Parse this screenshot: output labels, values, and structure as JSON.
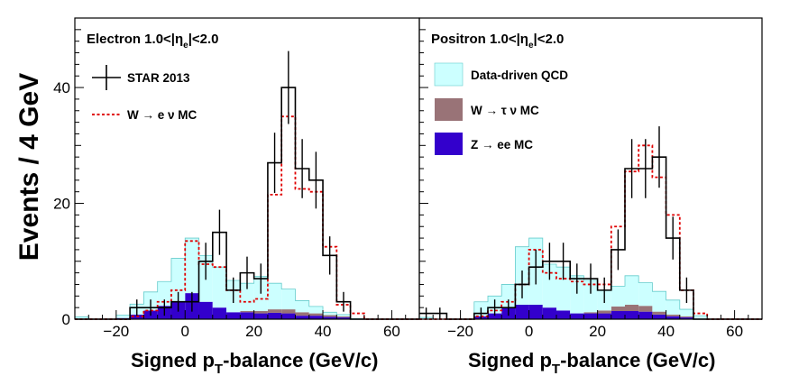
{
  "figure": {
    "y_axis_label": "Events / 4 GeV",
    "colors": {
      "data": "#000000",
      "w_enu_mc": "#e00000",
      "qcd": "#ccffff",
      "qcd_line": "#66cccc",
      "w_taunu": "#997377",
      "z_ee": "#3300cc"
    }
  },
  "panels": [
    {
      "id": "electron",
      "title_pre": "Electron 1.0<|η",
      "title_sub": "e",
      "title_post": "|<2.0",
      "xlabel_pre": "Signed p",
      "xlabel_sub": "T",
      "xlabel_post": "-balance (GeV/c)",
      "legend": [
        {
          "key": "data",
          "label": "STAR 2013",
          "style": "errorbar"
        },
        {
          "key": "w_enu_mc",
          "label": "W → e ν MC",
          "style": "dashed"
        }
      ]
    },
    {
      "id": "positron",
      "title_pre": "Positron 1.0<|η",
      "title_sub": "e",
      "title_post": "|<2.0",
      "xlabel_pre": "Signed p",
      "xlabel_sub": "T",
      "xlabel_post": "-balance (GeV/c)",
      "legend": [
        {
          "key": "qcd",
          "label": "Data-driven QCD",
          "style": "box"
        },
        {
          "key": "w_taunu",
          "label": "W → τ ν MC",
          "style": "box"
        },
        {
          "key": "z_ee",
          "label": "Z → ee MC",
          "style": "box"
        }
      ]
    }
  ],
  "chart_data": [
    {
      "type": "bar",
      "title": "Electron 1.0<|ηe|<2.0",
      "xlabel": "Signed pT-balance (GeV/c)",
      "ylabel": "Events / 4 GeV",
      "xlim": [
        -32,
        68
      ],
      "ylim": [
        0,
        52
      ],
      "xticks": [
        -20,
        0,
        20,
        40,
        60
      ],
      "yticks": [
        0,
        20,
        40
      ],
      "bin_edges": [
        -32,
        -28,
        -24,
        -20,
        -16,
        -12,
        -8,
        -4,
        0,
        4,
        8,
        12,
        16,
        20,
        24,
        28,
        32,
        36,
        40,
        44,
        48,
        52,
        56,
        60,
        64,
        68
      ],
      "series": [
        {
          "name": "STAR 2013",
          "kind": "data",
          "values": [
            0,
            0,
            0,
            0,
            2,
            2,
            2,
            3,
            3,
            10,
            15,
            5,
            8,
            7,
            27,
            40,
            26,
            24,
            11,
            3,
            0,
            0,
            0,
            0,
            0
          ],
          "errors": [
            0,
            0,
            0,
            0,
            1.4,
            1.4,
            1.4,
            1.7,
            1.7,
            3.2,
            3.9,
            2.2,
            2.8,
            2.6,
            5.2,
            6.3,
            5.1,
            4.9,
            3.3,
            1.7,
            0,
            0,
            0,
            0,
            0
          ]
        },
        {
          "name": "W → e ν MC",
          "kind": "line",
          "values": [
            0,
            0,
            0,
            0,
            0.5,
            1.5,
            3,
            5,
            13.5,
            9.5,
            9,
            5,
            3,
            3.5,
            21.5,
            35,
            22.5,
            22,
            12.5,
            2.5,
            1,
            0,
            0,
            0,
            0
          ]
        },
        {
          "name": "Data-driven QCD",
          "kind": "stack",
          "values": [
            0.3,
            0,
            0,
            0.5,
            1.8,
            3.2,
            4.2,
            7.5,
            9.5,
            8,
            7,
            5.5,
            4.8,
            6,
            4.5,
            3.5,
            2,
            1.2,
            0.5,
            0.3,
            0,
            0,
            0,
            0,
            0
          ]
        },
        {
          "name": "W → τ ν MC",
          "kind": "stack",
          "values": [
            0,
            0,
            0,
            0,
            0,
            0,
            0,
            0,
            0,
            0,
            0,
            0,
            0.2,
            0.4,
            0.6,
            0.7,
            0.6,
            0.4,
            0.3,
            0.2,
            0,
            0,
            0,
            0,
            0
          ]
        },
        {
          "name": "Z → ee MC",
          "kind": "stack",
          "values": [
            0.1,
            0,
            0,
            0.2,
            0.8,
            1.5,
            2.3,
            3,
            4.5,
            3,
            2,
            1.2,
            1.2,
            1,
            1.1,
            1,
            0.6,
            0.6,
            0.4,
            0.3,
            0.1,
            0,
            0,
            0,
            0
          ]
        }
      ]
    },
    {
      "type": "bar",
      "title": "Positron 1.0<|ηe|<2.0",
      "xlabel": "Signed pT-balance (GeV/c)",
      "ylabel": "Events / 4 GeV",
      "xlim": [
        -32,
        68
      ],
      "ylim": [
        0,
        52
      ],
      "xticks": [
        -20,
        0,
        20,
        40,
        60
      ],
      "yticks": [
        0,
        20,
        40
      ],
      "bin_edges": [
        -32,
        -28,
        -24,
        -20,
        -16,
        -12,
        -8,
        -4,
        0,
        4,
        8,
        12,
        16,
        20,
        24,
        28,
        32,
        36,
        40,
        44,
        48,
        52,
        56,
        60,
        64,
        68
      ],
      "series": [
        {
          "name": "STAR 2013",
          "kind": "data",
          "values": [
            1,
            1,
            0,
            0,
            1,
            2,
            2,
            6,
            9,
            10,
            10,
            7,
            7,
            5,
            12,
            26,
            26,
            28,
            14,
            5,
            0,
            0,
            0,
            0,
            0
          ],
          "errors": [
            1,
            1,
            0,
            0,
            1,
            1.4,
            1.4,
            2.4,
            3,
            3.2,
            3.2,
            2.6,
            2.6,
            2.2,
            3.5,
            5.1,
            5.1,
            5.3,
            3.7,
            2.2,
            0,
            0,
            0,
            0,
            0
          ]
        },
        {
          "name": "W → e ν MC",
          "kind": "line",
          "values": [
            0,
            0,
            0,
            0,
            0.5,
            1.5,
            3,
            6,
            12,
            8,
            7,
            6.5,
            6,
            6,
            16,
            25.5,
            30,
            24.5,
            18,
            5,
            1,
            0,
            0,
            0,
            0
          ]
        },
        {
          "name": "Data-driven QCD",
          "kind": "stack",
          "values": [
            0.2,
            0,
            0,
            0,
            2.5,
            3,
            4,
            10,
            11.5,
            7.5,
            7.5,
            6.5,
            5.5,
            3.5,
            3.5,
            5,
            4,
            3.5,
            2.5,
            1.2,
            0.5,
            0,
            0,
            0,
            0
          ]
        },
        {
          "name": "W → τ ν MC",
          "kind": "stack",
          "values": [
            0,
            0,
            0,
            0,
            0,
            0,
            0,
            0,
            0,
            0,
            0,
            0,
            0.2,
            0.5,
            0.8,
            1.1,
            1,
            0.5,
            0.3,
            0.2,
            0,
            0,
            0,
            0,
            0
          ]
        },
        {
          "name": "Z → ee MC",
          "kind": "stack",
          "values": [
            0.1,
            0,
            0,
            0,
            0.5,
            1,
            2,
            2.5,
            2.5,
            2,
            1.5,
            1,
            1,
            1,
            1.4,
            1.4,
            1.3,
            0.8,
            0.5,
            0.3,
            0.1,
            0,
            0,
            0,
            0
          ]
        }
      ]
    }
  ]
}
